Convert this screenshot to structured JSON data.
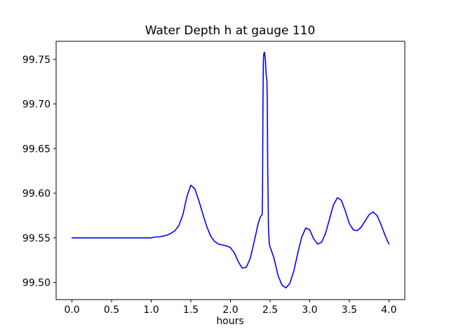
{
  "chart": {
    "title": "Water Depth h at gauge 110",
    "xlabel": "hours"
  },
  "chart_data": {
    "type": "line",
    "title": "Water Depth h at gauge 110",
    "xlabel": "hours",
    "ylabel": "",
    "line_color": "#0000ff",
    "background_color": "#ffffff",
    "grid": false,
    "legend": "none",
    "xlim": [
      -0.2,
      4.2
    ],
    "ylim": [
      99.4808,
      99.7702
    ],
    "xticks": {
      "values": [
        0.0,
        0.5,
        1.0,
        1.5,
        2.0,
        2.5,
        3.0,
        3.5,
        4.0
      ],
      "labels": [
        "0.0",
        "0.5",
        "1.0",
        "1.5",
        "2.0",
        "2.5",
        "3.0",
        "3.5",
        "4.0"
      ]
    },
    "yticks": {
      "values": [
        99.5,
        99.55,
        99.6,
        99.65,
        99.7,
        99.75
      ],
      "labels": [
        "99.50",
        "99.55",
        "99.60",
        "99.65",
        "99.70",
        "99.75"
      ]
    },
    "x": [
      0.0,
      0.1,
      0.2,
      0.3,
      0.4,
      0.5,
      0.6,
      0.7,
      0.8,
      0.9,
      1.0,
      1.05,
      1.1,
      1.15,
      1.2,
      1.25,
      1.3,
      1.35,
      1.4,
      1.45,
      1.5,
      1.55,
      1.6,
      1.65,
      1.7,
      1.75,
      1.8,
      1.85,
      1.9,
      1.95,
      2.0,
      2.05,
      2.1,
      2.15,
      2.2,
      2.25,
      2.3,
      2.35,
      2.38,
      2.4,
      2.405,
      2.41,
      2.415,
      2.42,
      2.43,
      2.44,
      2.45,
      2.46,
      2.465,
      2.47,
      2.48,
      2.49,
      2.5,
      2.55,
      2.6,
      2.65,
      2.7,
      2.75,
      2.8,
      2.85,
      2.9,
      2.95,
      3.0,
      3.05,
      3.1,
      3.15,
      3.2,
      3.25,
      3.3,
      3.35,
      3.4,
      3.45,
      3.5,
      3.55,
      3.6,
      3.65,
      3.7,
      3.75,
      3.8,
      3.85,
      3.9,
      3.95,
      4.0
    ],
    "y": [
      99.55,
      99.55,
      99.55,
      99.55,
      99.55,
      99.55,
      99.55,
      99.55,
      99.55,
      99.55,
      99.55,
      99.551,
      99.551,
      99.552,
      99.553,
      99.555,
      99.558,
      99.564,
      99.576,
      99.596,
      99.609,
      99.605,
      99.592,
      99.577,
      99.563,
      99.552,
      99.546,
      99.543,
      99.542,
      99.541,
      99.539,
      99.533,
      99.523,
      99.516,
      99.517,
      99.527,
      99.546,
      99.566,
      99.574,
      99.576,
      99.6,
      99.7,
      99.748,
      99.756,
      99.758,
      99.75,
      99.733,
      99.727,
      99.7,
      99.63,
      99.56,
      99.543,
      99.54,
      99.527,
      99.508,
      99.497,
      99.494,
      99.499,
      99.513,
      99.533,
      99.551,
      99.561,
      99.559,
      99.549,
      99.543,
      99.545,
      99.555,
      99.571,
      99.587,
      99.595,
      99.592,
      99.58,
      99.566,
      99.559,
      99.558,
      99.562,
      99.569,
      99.576,
      99.579,
      99.575,
      99.565,
      99.553,
      99.543
    ]
  }
}
